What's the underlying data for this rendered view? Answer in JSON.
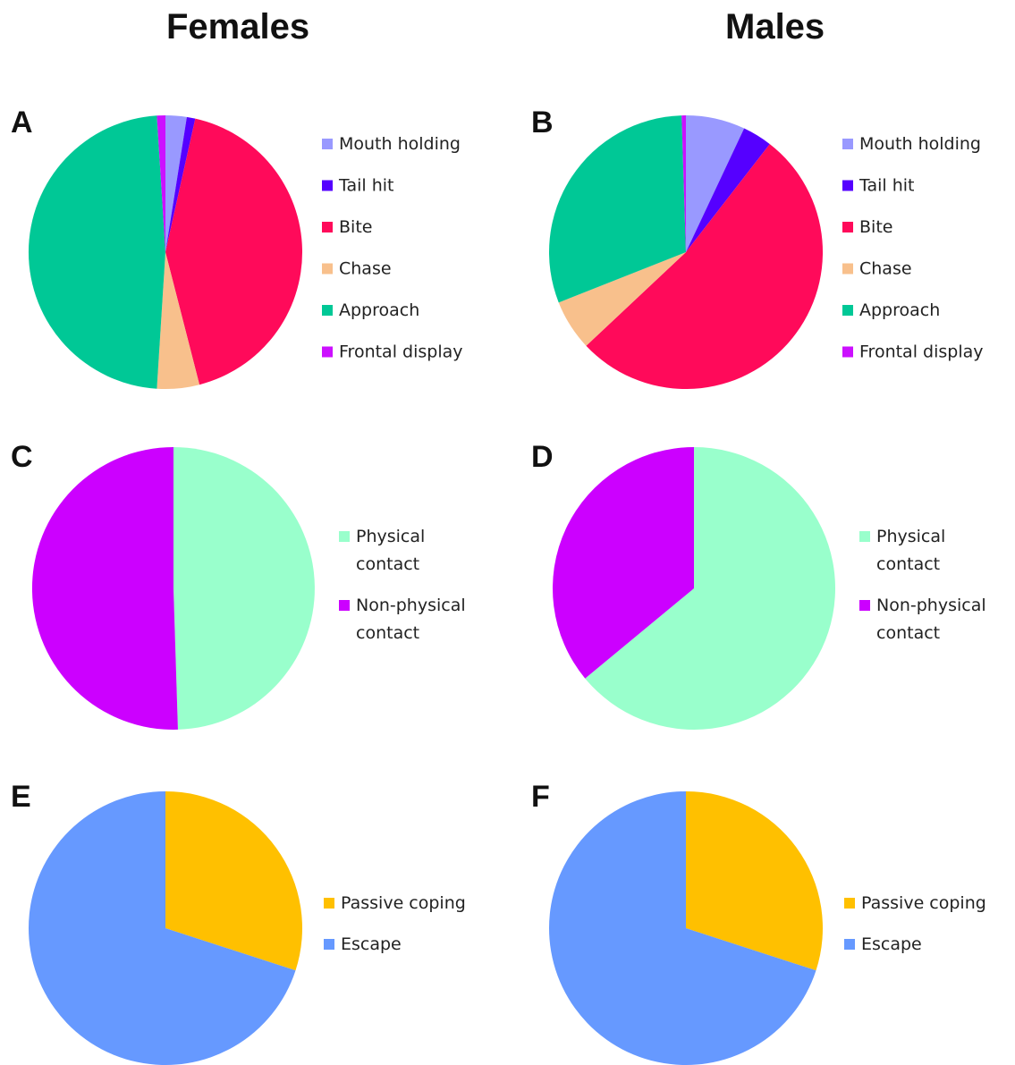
{
  "headers": {
    "females": "Females",
    "males": "Males"
  },
  "chart_data": [
    {
      "panel": "A",
      "type": "pie",
      "group": "Females",
      "slices": [
        {
          "label": "Mouth holding",
          "value": 2.5,
          "color": "#9999ff"
        },
        {
          "label": "Tail hit",
          "value": 1.0,
          "color": "#5500ff"
        },
        {
          "label": "Bite",
          "value": 42.5,
          "color": "#ff0a5a"
        },
        {
          "label": "Chase",
          "value": 5.0,
          "color": "#f8c08c"
        },
        {
          "label": "Approach",
          "value": 48.0,
          "color": "#00c896"
        },
        {
          "label": "Frontal display",
          "value": 1.0,
          "color": "#cc10ff"
        }
      ]
    },
    {
      "panel": "B",
      "type": "pie",
      "group": "Males",
      "slices": [
        {
          "label": "Mouth holding",
          "value": 7.0,
          "color": "#9999ff"
        },
        {
          "label": "Tail hit",
          "value": 3.5,
          "color": "#5500ff"
        },
        {
          "label": "Bite",
          "value": 52.5,
          "color": "#ff0a5a"
        },
        {
          "label": "Chase",
          "value": 6.0,
          "color": "#f8c08c"
        },
        {
          "label": "Approach",
          "value": 30.5,
          "color": "#00c896"
        },
        {
          "label": "Frontal display",
          "value": 0.5,
          "color": "#cc10ff"
        }
      ]
    },
    {
      "panel": "C",
      "type": "pie",
      "group": "Females",
      "slices": [
        {
          "label": "Physical contact",
          "value": 49.5,
          "color": "#99ffcc"
        },
        {
          "label": "Non-physical contact",
          "value": 50.5,
          "color": "#cc00ff"
        }
      ]
    },
    {
      "panel": "D",
      "type": "pie",
      "group": "Males",
      "slices": [
        {
          "label": "Physical contact",
          "value": 64.0,
          "color": "#99ffcc"
        },
        {
          "label": "Non-physical contact",
          "value": 36.0,
          "color": "#cc00ff"
        }
      ]
    },
    {
      "panel": "E",
      "type": "pie",
      "group": "Females",
      "slices": [
        {
          "label": "Passive coping",
          "value": 30.0,
          "color": "#ffc000"
        },
        {
          "label": "Escape",
          "value": 70.0,
          "color": "#6699ff"
        }
      ]
    },
    {
      "panel": "F",
      "type": "pie",
      "group": "Males",
      "slices": [
        {
          "label": "Passive coping",
          "value": 30.0,
          "color": "#ffc000"
        },
        {
          "label": "Escape",
          "value": 70.0,
          "color": "#6699ff"
        }
      ]
    }
  ]
}
